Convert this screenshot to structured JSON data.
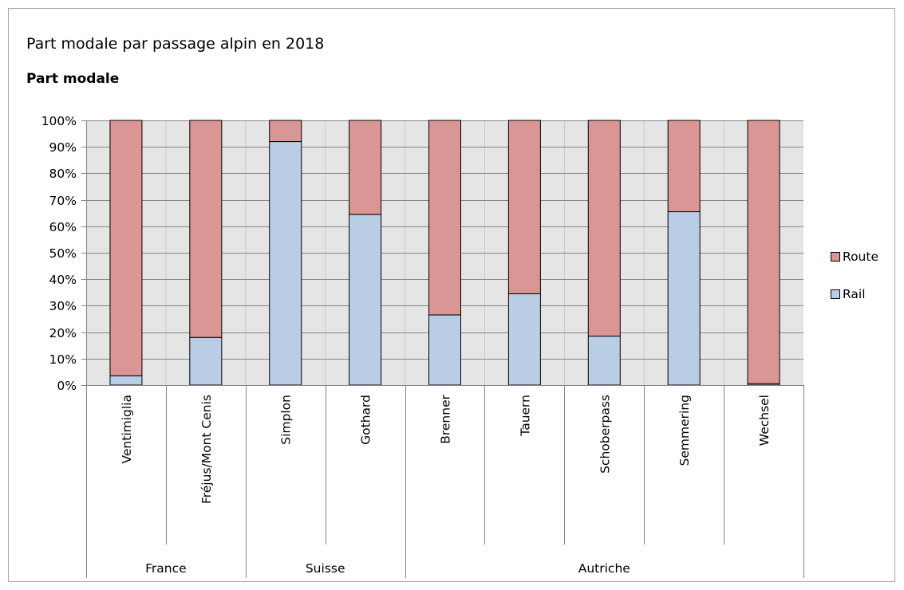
{
  "title": "Part modale par passage alpin en 2018",
  "subtitle": "Part modale",
  "colors": {
    "route": "#d99694",
    "rail": "#b9cde5",
    "plot_bg": "#e5e5e5",
    "grid": "#868686",
    "axis": "#868686"
  },
  "chart_data": {
    "type": "bar",
    "stacked": true,
    "percent": true,
    "categories": [
      "Ventimiglia",
      "Fréjus/Mont Cenis",
      "Simplon",
      "Gothard",
      "Brenner",
      "Tauern",
      "Schoberpass",
      "Semmering",
      "Wechsel"
    ],
    "groups": [
      {
        "label": "France",
        "count": 2
      },
      {
        "label": "Suisse",
        "count": 2
      },
      {
        "label": "Autriche",
        "count": 5
      }
    ],
    "series": [
      {
        "name": "Rail",
        "values": [
          3.5,
          18,
          92,
          64.5,
          26.5,
          34.5,
          18.5,
          65.5,
          0.5
        ]
      },
      {
        "name": "Route",
        "values": [
          96.5,
          82,
          8,
          35.5,
          73.5,
          65.5,
          81.5,
          34.5,
          99.5
        ]
      }
    ],
    "yticks": [
      "0%",
      "10%",
      "20%",
      "30%",
      "40%",
      "50%",
      "60%",
      "70%",
      "80%",
      "90%",
      "100%"
    ],
    "ylim": [
      0,
      100
    ],
    "legend_position": "right",
    "grid": true
  }
}
